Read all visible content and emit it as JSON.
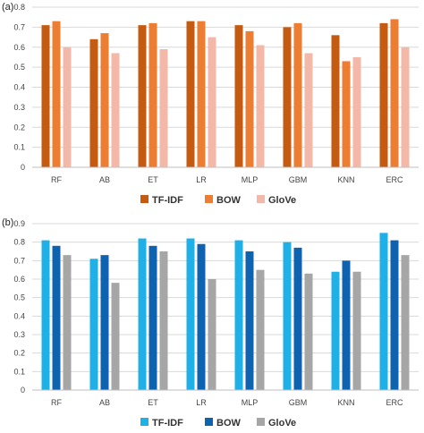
{
  "chart_data": [
    {
      "type": "bar",
      "panel_label": "(a)",
      "categories": [
        "RF",
        "AB",
        "ET",
        "LR",
        "MLP",
        "GBM",
        "KNN",
        "ERC"
      ],
      "ylim": [
        0,
        0.8
      ],
      "yticks": [
        "0",
        "0.1",
        "0.2",
        "0.3",
        "0.4",
        "0.5",
        "0.6",
        "0.7",
        "0.8"
      ],
      "grid": true,
      "legend_position": "bottom",
      "series": [
        {
          "name": "TF-IDF",
          "color": "#c55a11",
          "values": [
            0.71,
            0.64,
            0.71,
            0.73,
            0.71,
            0.7,
            0.66,
            0.72
          ]
        },
        {
          "name": "BOW",
          "color": "#ed7d31",
          "values": [
            0.73,
            0.67,
            0.72,
            0.73,
            0.68,
            0.72,
            0.53,
            0.74
          ]
        },
        {
          "name": "GloVe",
          "color": "#f4b8a8",
          "values": [
            0.6,
            0.57,
            0.59,
            0.65,
            0.61,
            0.57,
            0.55,
            0.6
          ]
        }
      ]
    },
    {
      "type": "bar",
      "panel_label": "(b)",
      "categories": [
        "RF",
        "AB",
        "ET",
        "LR",
        "MLP",
        "GBM",
        "KNN",
        "ERC"
      ],
      "ylim": [
        0,
        0.9
      ],
      "yticks": [
        "0",
        "0.1",
        "0.2",
        "0.3",
        "0.4",
        "0.5",
        "0.6",
        "0.7",
        "0.8",
        "0.9"
      ],
      "grid": true,
      "legend_position": "bottom",
      "series": [
        {
          "name": "TF-IDF",
          "color": "#1fb0e8",
          "values": [
            0.81,
            0.71,
            0.82,
            0.82,
            0.81,
            0.8,
            0.64,
            0.85
          ]
        },
        {
          "name": "BOW",
          "color": "#0d63b0",
          "values": [
            0.78,
            0.73,
            0.78,
            0.79,
            0.75,
            0.77,
            0.7,
            0.81
          ]
        },
        {
          "name": "GloVe",
          "color": "#a6a6a6",
          "values": [
            0.73,
            0.58,
            0.75,
            0.6,
            0.65,
            0.63,
            0.64,
            0.73
          ]
        }
      ]
    }
  ]
}
